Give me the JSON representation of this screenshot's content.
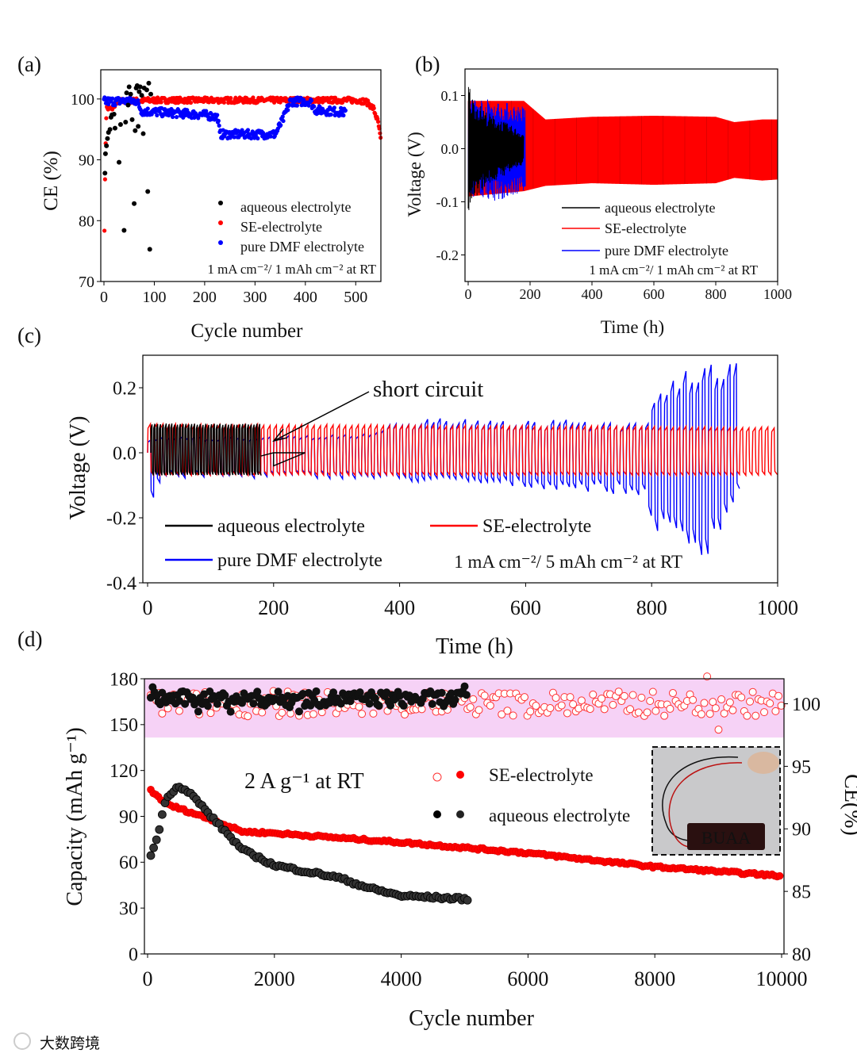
{
  "panel_labels": [
    "(a)",
    "(b)",
    "(c)",
    "(d)"
  ],
  "watermark": "大数跨境",
  "chart_data": [
    {
      "type": "scatter",
      "panel": "(a)",
      "xlabel": "Cycle number",
      "ylabel": "CE (%)",
      "xlim": [
        0,
        550
      ],
      "ylim": [
        70,
        105
      ],
      "xticks": [
        "0",
        "100",
        "200",
        "300",
        "400",
        "500"
      ],
      "yticks": [
        "70",
        "80",
        "90",
        "100"
      ],
      "note": "1 mA cm⁻²/ 1 mAh cm⁻²  at RT",
      "legend_position": "bottom-right",
      "series": [
        {
          "name": "aqueous electrolyte",
          "color": "#000000",
          "points": [
            [
              2,
              87.8
            ],
            [
              3,
              91
            ],
            [
              5,
              92.3
            ],
            [
              7,
              93.5
            ],
            [
              9,
              94.5
            ],
            [
              12,
              95
            ],
            [
              14,
              97
            ],
            [
              16,
              97.4
            ],
            [
              20,
              97.5
            ],
            [
              22,
              95.2
            ],
            [
              30,
              89.6
            ],
            [
              33,
              95.8
            ],
            [
              40,
              78.4
            ],
            [
              43,
              96.2
            ],
            [
              45,
              101
            ],
            [
              48,
              99
            ],
            [
              50,
              102
            ],
            [
              53,
              100.8
            ],
            [
              56,
              96.6
            ],
            [
              60,
              82.8
            ],
            [
              62,
              94.8
            ],
            [
              64,
              101.8
            ],
            [
              66,
              102.2
            ],
            [
              68,
              95.5
            ],
            [
              70,
              101.2
            ],
            [
              72,
              102
            ],
            [
              75,
              100.6
            ],
            [
              78,
              94.3
            ],
            [
              80,
              101.8
            ],
            [
              85,
              101.5
            ],
            [
              87,
              84.8
            ],
            [
              89,
              102.6
            ],
            [
              91,
              75.3
            ],
            [
              93,
              100.8
            ]
          ]
        },
        {
          "name": "SE-electrolyte",
          "color": "#ff0000",
          "trend": [
            [
              1,
              78.8
            ],
            [
              3,
              91.5
            ],
            [
              5,
              98.5
            ],
            [
              15,
              98.3
            ],
            [
              25,
              99.6
            ],
            [
              100,
              99.8
            ],
            [
              500,
              99.8
            ],
            [
              520,
              99.6
            ],
            [
              535,
              98.5
            ],
            [
              545,
              96
            ],
            [
              550,
              93
            ]
          ],
          "range": [
            1,
            550
          ]
        },
        {
          "name": "pure DMF electrolyte",
          "color": "#0000ff",
          "trend": [
            [
              0,
              99.6
            ],
            [
              65,
              99.7
            ],
            [
              75,
              98
            ],
            [
              200,
              97.4
            ],
            [
              226,
              97
            ],
            [
              230,
              94.2
            ],
            [
              340,
              94.2
            ],
            [
              355,
              96.5
            ],
            [
              370,
              99.6
            ],
            [
              410,
              99.6
            ],
            [
              420,
              98.2
            ],
            [
              480,
              97.8
            ]
          ],
          "range": [
            0,
            480
          ]
        }
      ]
    },
    {
      "type": "line",
      "panel": "(b)",
      "xlabel": "Time (h)",
      "ylabel": "Voltage (V)",
      "xlim": [
        0,
        1000
      ],
      "ylim": [
        -0.25,
        0.15
      ],
      "xticks": [
        "0",
        "200",
        "400",
        "600",
        "800",
        "1000"
      ],
      "yticks": [
        "0.1",
        "0.0",
        "-0.1",
        "-0.2"
      ],
      "note": "1 mA cm⁻²/ 1 mAh cm⁻²  at RT",
      "legend_position": "bottom-right",
      "series": [
        {
          "name": "aqueous electrolyte",
          "color": "#000000",
          "range": [
            0,
            180
          ],
          "upper": [
            [
              0,
              0.14
            ],
            [
              10,
              0.1
            ],
            [
              60,
              0.07
            ],
            [
              180,
              0.03
            ]
          ],
          "lower": [
            [
              0,
              -0.14
            ],
            [
              10,
              -0.1
            ],
            [
              60,
              -0.07
            ],
            [
              180,
              -0.03
            ]
          ]
        },
        {
          "name": "SE-electrolyte",
          "color": "#ff0000",
          "range": [
            0,
            1000
          ],
          "upper": [
            [
              0,
              0.09
            ],
            [
              180,
              0.09
            ],
            [
              250,
              0.055
            ],
            [
              400,
              0.06
            ],
            [
              600,
              0.062
            ],
            [
              800,
              0.06
            ],
            [
              860,
              0.05
            ],
            [
              950,
              0.055
            ],
            [
              1000,
              0.055
            ]
          ],
          "lower": [
            [
              0,
              -0.09
            ],
            [
              180,
              -0.08
            ],
            [
              250,
              -0.07
            ],
            [
              400,
              -0.065
            ],
            [
              600,
              -0.068
            ],
            [
              800,
              -0.065
            ],
            [
              860,
              -0.055
            ],
            [
              950,
              -0.06
            ],
            [
              1000,
              -0.058
            ]
          ]
        },
        {
          "name": "pure DMF electrolyte",
          "color": "#0000ff",
          "range": [
            0,
            185
          ],
          "upper": [
            [
              0,
              0.1
            ],
            [
              100,
              0.09
            ],
            [
              185,
              0.08
            ]
          ],
          "lower": [
            [
              0,
              -0.09
            ],
            [
              100,
              -0.1
            ],
            [
              185,
              -0.08
            ]
          ]
        }
      ]
    },
    {
      "type": "line",
      "panel": "(c)",
      "xlabel": "Time (h)",
      "ylabel": "Voltage (V)",
      "xlim": [
        0,
        1000
      ],
      "ylim": [
        -0.4,
        0.3
      ],
      "xticks": [
        "0",
        "200",
        "400",
        "600",
        "800",
        "1000"
      ],
      "yticks": [
        "0.2",
        "0.0",
        "-0.2",
        "-0.4"
      ],
      "note": "1 mA cm⁻²/ 5 mAh cm⁻²  at RT",
      "annotation": "short circuit",
      "annotation_target": [
        200,
        0.04
      ],
      "legend_position": "bottom",
      "series": [
        {
          "name": "aqueous electrolyte",
          "color": "#000000",
          "period": 4.5,
          "range": [
            5,
            180
          ],
          "upper": [
            [
              5,
              0.09
            ],
            [
              180,
              0.09
            ]
          ],
          "lower": [
            [
              5,
              -0.07
            ],
            [
              180,
              -0.07
            ]
          ],
          "after_short": [
            [
              180,
              -0.01
            ],
            [
              200,
              0.0
            ],
            [
              250,
              0.0
            ]
          ]
        },
        {
          "name": "SE-electrolyte",
          "color": "#ff0000",
          "period": 10,
          "range": [
            0,
            1000
          ],
          "upper": [
            [
              0,
              0.09
            ],
            [
              1000,
              0.08
            ]
          ],
          "lower": [
            [
              0,
              -0.07
            ],
            [
              1000,
              -0.07
            ]
          ]
        },
        {
          "name": "pure DMF electrolyte",
          "color": "#0000ff",
          "period": 10,
          "range": [
            0,
            940
          ],
          "upper": [
            [
              0,
              0.05
            ],
            [
              350,
              0.06
            ],
            [
              400,
              0.11
            ],
            [
              700,
              0.1
            ],
            [
              790,
              0.1
            ],
            [
              800,
              0.18
            ],
            [
              870,
              0.28
            ],
            [
              940,
              0.3
            ]
          ],
          "lower": [
            [
              0,
              -0.18
            ],
            [
              20,
              -0.08
            ],
            [
              300,
              -0.08
            ],
            [
              500,
              -0.1
            ],
            [
              700,
              -0.12
            ],
            [
              790,
              -0.14
            ],
            [
              800,
              -0.25
            ],
            [
              880,
              -0.33
            ],
            [
              940,
              -0.12
            ]
          ]
        }
      ]
    },
    {
      "type": "scatter",
      "panel": "(d)",
      "xlabel": "Cycle number",
      "ylabel": "Capacity (mAh g⁻¹)",
      "y2label": "CE(%)",
      "xlim": [
        0,
        10000
      ],
      "ylim": [
        0,
        180
      ],
      "y2lim": [
        80,
        102
      ],
      "xticks": [
        "0",
        "2000",
        "4000",
        "6000",
        "8000",
        "10000"
      ],
      "yticks": [
        "0",
        "30",
        "60",
        "90",
        "120",
        "150",
        "180"
      ],
      "y2ticks": [
        "80",
        "85",
        "90",
        "95",
        "100"
      ],
      "note": "2 A g⁻¹ at RT",
      "legend_position": "top-right",
      "inset_text": "BUAA",
      "series": [
        {
          "name": "SE-electrolyte",
          "color": "#ff0000",
          "capacity": [
            [
              50,
              107
            ],
            [
              300,
              98
            ],
            [
              1000,
              88
            ],
            [
              1500,
              80
            ],
            [
              2000,
              79
            ],
            [
              4000,
              73
            ],
            [
              6000,
              66
            ],
            [
              8000,
              57
            ],
            [
              10000,
              51
            ]
          ],
          "capacity_range": [
            50,
            10000
          ],
          "ce": [
            99,
            101
          ],
          "ce_range": [
            50,
            10000
          ]
        },
        {
          "name": "aqueous electrolyte",
          "color": "#000000",
          "capacity": [
            [
              50,
              64
            ],
            [
              150,
              76
            ],
            [
              300,
              103
            ],
            [
              500,
              110
            ],
            [
              700,
              104
            ],
            [
              1000,
              90
            ],
            [
              1500,
              68
            ],
            [
              2000,
              58
            ],
            [
              3000,
              50
            ],
            [
              3500,
              43
            ],
            [
              4000,
              38
            ],
            [
              5000,
              36
            ]
          ],
          "capacity_range": [
            50,
            5050
          ],
          "ce": [
            99.8,
            101
          ],
          "ce_range": [
            50,
            5050
          ]
        }
      ]
    }
  ]
}
